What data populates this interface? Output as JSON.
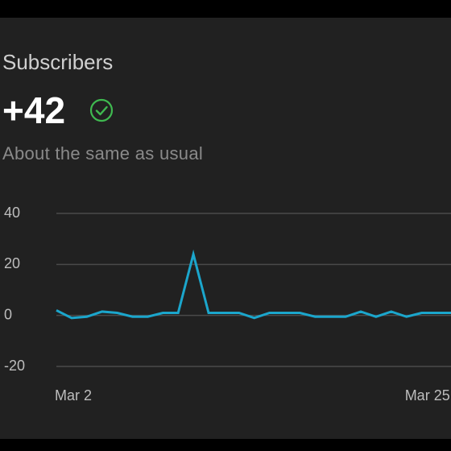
{
  "header": {
    "title": "Subscribers",
    "metric": "+42",
    "subtitle": "About the same as usual"
  },
  "chart_data": {
    "type": "line",
    "categories": [
      "Mar 2",
      null,
      null,
      null,
      null,
      null,
      null,
      null,
      null,
      null,
      null,
      null,
      null,
      null,
      null,
      null,
      null,
      null,
      null,
      null,
      null,
      null,
      null,
      "Mar 25",
      null,
      null,
      null
    ],
    "series": [
      {
        "name": "Subscribers",
        "color": "#1ba6cc",
        "values": [
          2,
          -1,
          -0.5,
          1.5,
          1,
          -0.5,
          -0.5,
          1,
          1,
          24,
          1,
          1,
          1,
          -1,
          1,
          1,
          1,
          -0.5,
          -0.5,
          -0.5,
          1.5,
          -0.5,
          1.5,
          -0.5,
          1,
          1,
          1
        ]
      }
    ],
    "ylim": [
      -20,
      40
    ],
    "yticks": [
      -20,
      0,
      20,
      40
    ],
    "grid": true
  }
}
